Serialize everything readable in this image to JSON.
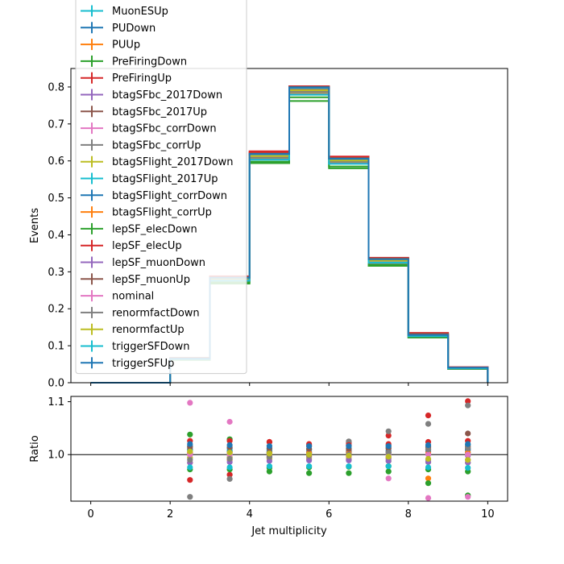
{
  "chart_data": [
    {
      "type": "line",
      "panel": "main",
      "xlabel": "",
      "ylabel": "Events",
      "xlim": [
        -0.5,
        10.5
      ],
      "ylim": [
        0,
        0.85
      ],
      "yticks": [
        0.0,
        0.1,
        0.2,
        0.3,
        0.4,
        0.5,
        0.6,
        0.7,
        0.8
      ],
      "ytick_labels": [
        "0.0",
        "0.1",
        "0.2",
        "0.3",
        "0.4",
        "0.5",
        "0.6",
        "0.7",
        "0.8"
      ],
      "bin_edges": [
        0,
        1,
        2,
        3,
        4,
        5,
        6,
        7,
        8,
        9,
        10
      ],
      "grid": false,
      "legend_placement": "upper-left",
      "series": [
        {
          "name": "MuonESUp",
          "color": "#17becf",
          "values": [
            0,
            0,
            0.065,
            0.28,
            0.612,
            0.79,
            0.6,
            0.33,
            0.128,
            0.04
          ]
        },
        {
          "name": "PUDown",
          "color": "#1f77b4",
          "values": [
            0,
            0,
            0.066,
            0.282,
            0.614,
            0.792,
            0.601,
            0.331,
            0.129,
            0.04
          ]
        },
        {
          "name": "PUUp",
          "color": "#ff7f0e",
          "values": [
            0,
            0,
            0.064,
            0.278,
            0.608,
            0.786,
            0.598,
            0.328,
            0.127,
            0.039
          ]
        },
        {
          "name": "PreFiringDown",
          "color": "#2ca02c",
          "values": [
            0,
            0,
            0.062,
            0.268,
            0.594,
            0.762,
            0.58,
            0.316,
            0.122,
            0.037
          ]
        },
        {
          "name": "PreFiringUp",
          "color": "#d62728",
          "values": [
            0,
            0,
            0.067,
            0.288,
            0.626,
            0.802,
            0.612,
            0.338,
            0.135,
            0.042
          ]
        },
        {
          "name": "btagSFbc_2017Down",
          "color": "#9467bd",
          "values": [
            0,
            0,
            0.065,
            0.279,
            0.608,
            0.784,
            0.596,
            0.327,
            0.128,
            0.04
          ]
        },
        {
          "name": "btagSFbc_2017Up",
          "color": "#8c564b",
          "values": [
            0,
            0,
            0.065,
            0.281,
            0.616,
            0.796,
            0.604,
            0.333,
            0.13,
            0.04
          ]
        },
        {
          "name": "btagSFbc_corrDown",
          "color": "#e377c2",
          "values": [
            0,
            0,
            0.066,
            0.283,
            0.61,
            0.788,
            0.599,
            0.326,
            0.126,
            0.039
          ]
        },
        {
          "name": "btagSFbc_corrUp",
          "color": "#7f7f7f",
          "values": [
            0,
            0,
            0.064,
            0.277,
            0.614,
            0.794,
            0.603,
            0.334,
            0.131,
            0.041
          ]
        },
        {
          "name": "btagSFlight_2017Down",
          "color": "#bcbd22",
          "values": [
            0,
            0,
            0.065,
            0.28,
            0.606,
            0.782,
            0.595,
            0.325,
            0.127,
            0.039
          ]
        },
        {
          "name": "btagSFlight_2017Up",
          "color": "#17becf",
          "values": [
            0,
            0,
            0.066,
            0.281,
            0.618,
            0.798,
            0.606,
            0.335,
            0.13,
            0.041
          ]
        },
        {
          "name": "btagSFlight_corrDown",
          "color": "#1f77b4",
          "values": [
            0,
            0,
            0.065,
            0.282,
            0.612,
            0.79,
            0.601,
            0.33,
            0.128,
            0.04
          ]
        },
        {
          "name": "btagSFlight_corrUp",
          "color": "#ff7f0e",
          "values": [
            0,
            0,
            0.065,
            0.28,
            0.613,
            0.791,
            0.6,
            0.331,
            0.129,
            0.04
          ]
        },
        {
          "name": "lepSF_elecDown",
          "color": "#2ca02c",
          "values": [
            0,
            0,
            0.063,
            0.272,
            0.598,
            0.772,
            0.585,
            0.32,
            0.123,
            0.038
          ]
        },
        {
          "name": "lepSF_elecUp",
          "color": "#d62728",
          "values": [
            0,
            0,
            0.067,
            0.287,
            0.624,
            0.8,
            0.61,
            0.336,
            0.134,
            0.042
          ]
        },
        {
          "name": "lepSF_muonDown",
          "color": "#9467bd",
          "values": [
            0,
            0,
            0.064,
            0.276,
            0.604,
            0.78,
            0.593,
            0.324,
            0.126,
            0.039
          ]
        },
        {
          "name": "lepSF_muonUp",
          "color": "#8c564b",
          "values": [
            0,
            0,
            0.066,
            0.285,
            0.62,
            0.8,
            0.608,
            0.336,
            0.132,
            0.041
          ]
        },
        {
          "name": "nominal",
          "color": "#e377c2",
          "values": [
            0,
            0,
            0.065,
            0.28,
            0.611,
            0.789,
            0.599,
            0.329,
            0.127,
            0.039
          ]
        },
        {
          "name": "renormfactDown",
          "color": "#7f7f7f",
          "values": [
            0,
            0,
            0.064,
            0.278,
            0.609,
            0.787,
            0.598,
            0.33,
            0.129,
            0.04
          ]
        },
        {
          "name": "renormfactUp",
          "color": "#bcbd22",
          "values": [
            0,
            0,
            0.066,
            0.282,
            0.613,
            0.791,
            0.601,
            0.33,
            0.127,
            0.04
          ]
        },
        {
          "name": "triggerSFDown",
          "color": "#17becf",
          "values": [
            0,
            0,
            0.064,
            0.276,
            0.603,
            0.779,
            0.592,
            0.325,
            0.126,
            0.039
          ]
        },
        {
          "name": "triggerSFUp",
          "color": "#1f77b4",
          "values": [
            0,
            0,
            0.066,
            0.284,
            0.619,
            0.799,
            0.606,
            0.334,
            0.129,
            0.041
          ]
        }
      ]
    },
    {
      "type": "scatter",
      "panel": "ratio",
      "xlabel": "Jet multiplicity",
      "ylabel": "Ratio",
      "xlim": [
        -0.5,
        10.5
      ],
      "ylim": [
        0.912,
        1.11
      ],
      "xticks": [
        0,
        2,
        4,
        6,
        8,
        10
      ],
      "xtick_labels": [
        "0",
        "2",
        "4",
        "6",
        "8",
        "10"
      ],
      "yticks": [
        1.0,
        1.1
      ],
      "ytick_labels": [
        "1.0",
        "1.1"
      ],
      "reference_line": 1.0,
      "x": [
        2.5,
        3.5,
        4.5,
        5.5,
        6.5,
        7.5,
        8.5,
        9.5
      ],
      "series": [
        {
          "name": "MuonESUp",
          "color": "#17becf",
          "values": [
            1.0,
            1.0,
            1.002,
            1.001,
            1.001,
            1.002,
            1.008,
            1.004
          ]
        },
        {
          "name": "PUDown",
          "color": "#1f77b4",
          "values": [
            1.016,
            1.012,
            1.006,
            1.004,
            1.005,
            1.008,
            1.014,
            1.01
          ]
        },
        {
          "name": "PUUp",
          "color": "#ff7f0e",
          "values": [
            0.985,
            0.99,
            0.995,
            0.996,
            0.996,
            0.994,
            0.955,
            0.99
          ]
        },
        {
          "name": "PreFiringDown",
          "color": "#2ca02c",
          "values": [
            1.038,
            1.029,
            0.968,
            0.965,
            0.965,
            0.968,
            0.946,
            0.923
          ]
        },
        {
          "name": "PreFiringUp",
          "color": "#d62728",
          "values": [
            0.952,
            0.962,
            1.024,
            1.02,
            1.022,
            1.036,
            1.074,
            1.101
          ]
        },
        {
          "name": "btagSFbc_2017Down",
          "color": "#9467bd",
          "values": [
            1.0,
            0.995,
            0.994,
            0.993,
            0.992,
            0.992,
            0.99,
            0.998
          ]
        },
        {
          "name": "btagSFbc_2017Up",
          "color": "#8c564b",
          "values": [
            1.002,
            1.005,
            1.008,
            1.009,
            1.008,
            1.012,
            1.01,
            1.04
          ]
        },
        {
          "name": "btagSFbc_corrDown",
          "color": "#e377c2",
          "values": [
            1.098,
            1.062,
            0.998,
            0.997,
            0.998,
            0.955,
            0.918,
            0.92
          ]
        },
        {
          "name": "btagSFbc_corrUp",
          "color": "#7f7f7f",
          "values": [
            0.92,
            0.954,
            1.004,
            1.006,
            1.025,
            1.044,
            1.058,
            1.093
          ]
        },
        {
          "name": "btagSFlight_2017Down",
          "color": "#bcbd22",
          "values": [
            0.994,
            0.994,
            0.992,
            0.991,
            0.99,
            0.988,
            0.986,
            0.985
          ]
        },
        {
          "name": "btagSFlight_2017Up",
          "color": "#17becf",
          "values": [
            1.008,
            1.008,
            1.01,
            1.01,
            1.012,
            1.016,
            1.015,
            1.018
          ]
        },
        {
          "name": "btagSFlight_corrDown",
          "color": "#1f77b4",
          "values": [
            1.01,
            1.006,
            1.004,
            1.003,
            1.004,
            1.005,
            1.006,
            1.008
          ]
        },
        {
          "name": "btagSFlight_corrUp",
          "color": "#ff7f0e",
          "values": [
            1.004,
            1.003,
            1.003,
            1.003,
            1.003,
            1.004,
            1.003,
            1.004
          ]
        },
        {
          "name": "lepSF_elecDown",
          "color": "#2ca02c",
          "values": [
            0.972,
            0.972,
            0.975,
            0.976,
            0.977,
            0.978,
            0.972,
            0.968
          ]
        },
        {
          "name": "lepSF_elecUp",
          "color": "#d62728",
          "values": [
            1.026,
            1.026,
            1.024,
            1.016,
            1.018,
            1.02,
            1.024,
            1.026
          ]
        },
        {
          "name": "lepSF_muonDown",
          "color": "#9467bd",
          "values": [
            0.985,
            0.986,
            0.988,
            0.989,
            0.989,
            0.988,
            0.986,
            0.985
          ]
        },
        {
          "name": "lepSF_muonUp",
          "color": "#8c564b",
          "values": [
            1.014,
            1.014,
            1.012,
            1.011,
            1.011,
            1.012,
            1.014,
            1.015
          ]
        },
        {
          "name": "nominal",
          "color": "#e377c2",
          "values": [
            1.0,
            1.0,
            1.0,
            1.0,
            1.0,
            1.0,
            1.0,
            1.0
          ]
        },
        {
          "name": "renormfactDown",
          "color": "#7f7f7f",
          "values": [
            0.99,
            0.992,
            0.996,
            0.998,
            1.0,
            1.004,
            1.01,
            1.012
          ]
        },
        {
          "name": "renormfactUp",
          "color": "#bcbd22",
          "values": [
            1.006,
            1.004,
            1.002,
            1.0,
            0.998,
            0.996,
            0.992,
            0.99
          ]
        },
        {
          "name": "triggerSFDown",
          "color": "#17becf",
          "values": [
            0.976,
            0.976,
            0.978,
            0.978,
            0.978,
            0.978,
            0.976,
            0.975
          ]
        },
        {
          "name": "triggerSFUp",
          "color": "#1f77b4",
          "values": [
            1.02,
            1.018,
            1.016,
            1.016,
            1.016,
            1.016,
            1.018,
            1.02
          ]
        }
      ]
    }
  ]
}
